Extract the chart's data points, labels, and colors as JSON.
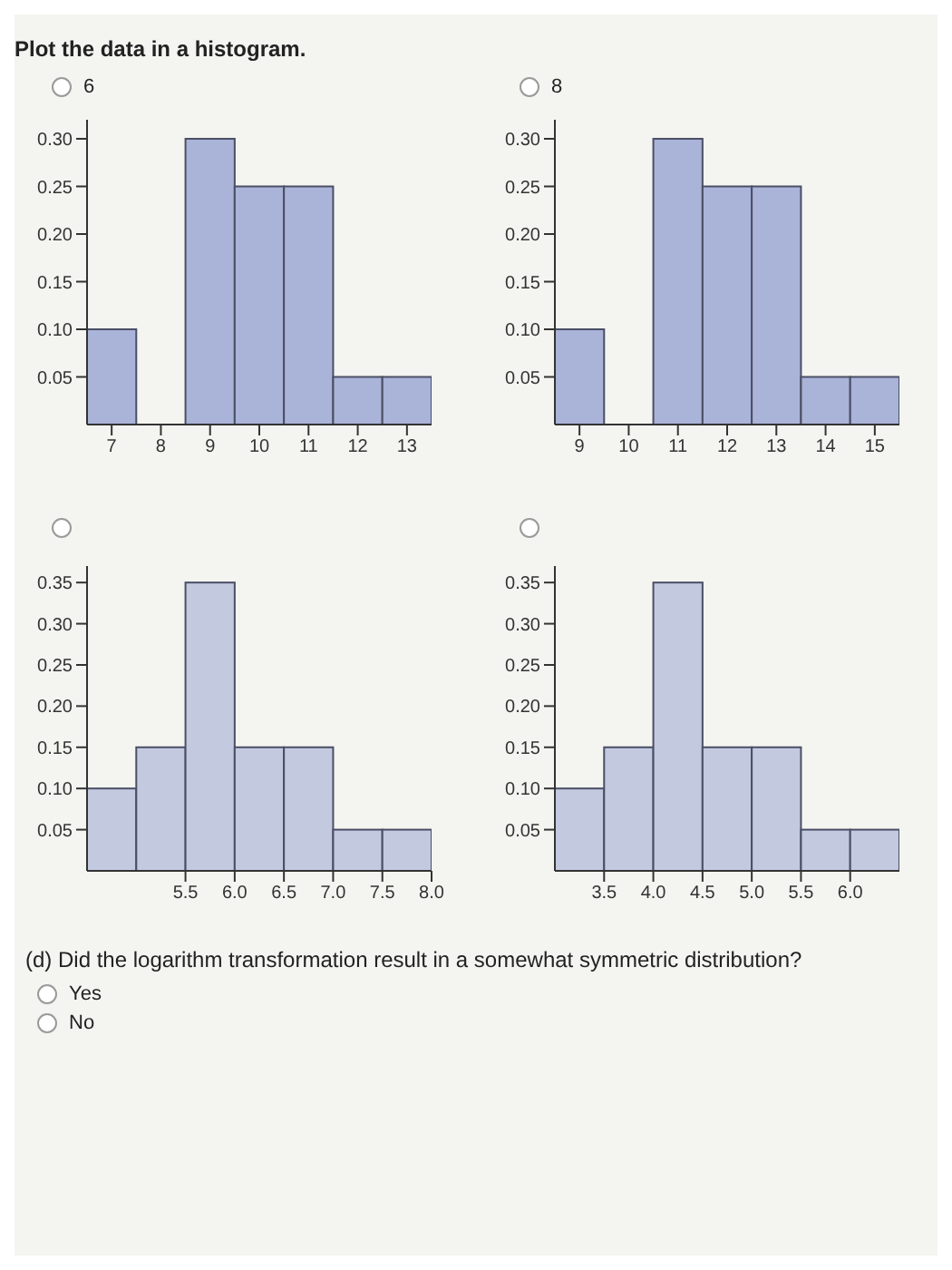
{
  "chart_data": [
    {
      "type": "histogram",
      "title": "Plot the data in a histogram.",
      "annotations": [
        "6"
      ],
      "bins": [
        6.5,
        7.5,
        8.5,
        9.5,
        10.5,
        11.5,
        12.5,
        13.5
      ],
      "values": [
        0.1,
        0,
        0.3,
        0.25,
        0.25,
        0.05,
        0.05
      ],
      "color": "#aab3d8",
      "xlim": [
        6.5,
        13.5
      ],
      "xticks": [
        7,
        8,
        9,
        10,
        11,
        12,
        13
      ],
      "ylim": [
        0,
        0.32
      ],
      "yticks": [
        {
          "value": 0.05,
          "label": "0.05"
        },
        {
          "value": 0.1,
          "label": "0.10"
        },
        {
          "value": 0.15,
          "label": "0.15"
        },
        {
          "value": 0.2,
          "label": "0.20"
        },
        {
          "value": 0.25,
          "label": "0.25"
        },
        {
          "value": 0.3,
          "label": "0.30"
        }
      ],
      "grid": false
    },
    {
      "type": "histogram",
      "annotations": [
        "8"
      ],
      "bins": [
        8.5,
        9.5,
        10.5,
        11.5,
        12.5,
        13.5,
        14.5,
        15.5
      ],
      "values": [
        0.1,
        0,
        0.3,
        0.25,
        0.25,
        0.05,
        0.05
      ],
      "color": "#aab3d8",
      "xlim": [
        8.5,
        15.5
      ],
      "xticks": [
        9,
        10,
        11,
        12,
        13,
        14,
        15
      ],
      "ylim": [
        0,
        0.32
      ],
      "yticks": [
        {
          "value": 0.05,
          "label": "0.05"
        },
        {
          "value": 0.1,
          "label": "0.10"
        },
        {
          "value": 0.15,
          "label": "0.15"
        },
        {
          "value": 0.2,
          "label": "0.20"
        },
        {
          "value": 0.25,
          "label": "0.25"
        },
        {
          "value": 0.3,
          "label": "0.30"
        }
      ],
      "grid": false
    },
    {
      "type": "histogram",
      "bins": [
        4.5,
        5.0,
        5.5,
        6.0,
        6.5,
        7.0,
        7.5,
        8.0
      ],
      "values": [
        0.1,
        0.15,
        0.35,
        0.15,
        0.15,
        0.05,
        0.05
      ],
      "color": "#c3c9df",
      "xlim": [
        4.5,
        8.0
      ],
      "xticks": [
        5.5,
        {
          "value": 6,
          "label": "6.0"
        },
        6.5,
        {
          "value": 7,
          "label": "7.0"
        },
        7.5,
        {
          "value": 8,
          "label": "8.0"
        }
      ],
      "ylim": [
        0,
        0.37
      ],
      "yticks": [
        {
          "value": 0.05,
          "label": "0.05"
        },
        {
          "value": 0.1,
          "label": "0.10"
        },
        {
          "value": 0.15,
          "label": "0.15"
        },
        {
          "value": 0.2,
          "label": "0.20"
        },
        {
          "value": 0.25,
          "label": "0.25"
        },
        {
          "value": 0.3,
          "label": "0.30"
        },
        {
          "value": 0.35,
          "label": "0.35"
        }
      ],
      "grid": false
    },
    {
      "type": "histogram",
      "annotations": [
        "(d) Did the logarithm transformation result in a somewhat symmetric distribution?",
        "Yes",
        "No"
      ],
      "bins": [
        3.0,
        3.5,
        4.0,
        4.5,
        5.0,
        5.5,
        6.0,
        6.5
      ],
      "values": [
        0.1,
        0.15,
        0.35,
        0.15,
        0.15,
        0.05,
        0.05
      ],
      "color": "#c3c9df",
      "xlim": [
        3.0,
        6.5
      ],
      "xticks": [
        3.5,
        {
          "value": 4,
          "label": "4.0"
        },
        4.5,
        {
          "value": 5,
          "label": "5.0"
        },
        5.5,
        {
          "value": 6,
          "label": "6.0"
        }
      ],
      "ylim": [
        0,
        0.37
      ],
      "yticks": [
        {
          "value": 0.05,
          "label": "0.05"
        },
        {
          "value": 0.1,
          "label": "0.10"
        },
        {
          "value": 0.15,
          "label": "0.15"
        },
        {
          "value": 0.2,
          "label": "0.20"
        },
        {
          "value": 0.25,
          "label": "0.25"
        },
        {
          "value": 0.3,
          "label": "0.30"
        },
        {
          "value": 0.35,
          "label": "0.35"
        }
      ],
      "grid": false
    }
  ]
}
